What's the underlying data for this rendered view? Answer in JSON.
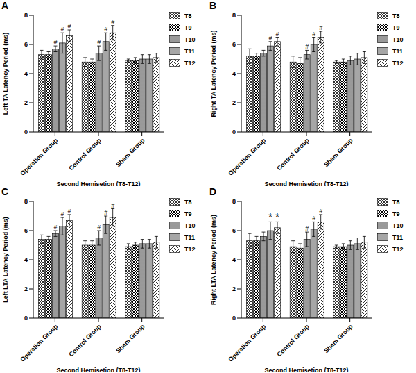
{
  "chart_data": [
    {
      "type": "bar",
      "title": "A",
      "xlabel": "Second Hemisetion (T8-T12)",
      "ylabel": "Left TA Latency Period (ms)",
      "categories": [
        "Operation Group",
        "Control Group",
        "Sham Group"
      ],
      "ylim": [
        0,
        8
      ],
      "yticks": [
        0,
        2,
        4,
        6,
        8
      ],
      "grid": false,
      "legend": "right",
      "series": [
        {
          "name": "T8",
          "color": "#000000",
          "values": [
            5.3,
            4.8,
            4.9
          ],
          "errors": [
            0.3,
            0.3,
            0.1
          ],
          "annotations": [
            null,
            null,
            null
          ]
        },
        {
          "name": "T9",
          "color": "#000000",
          "values": [
            5.3,
            4.8,
            4.9
          ],
          "errors": [
            0.2,
            0.2,
            0.2
          ],
          "annotations": [
            null,
            null,
            null
          ]
        },
        {
          "name": "T10",
          "color": "#000000",
          "values": [
            5.7,
            5.4,
            5.0
          ],
          "errors": [
            0.2,
            0.5,
            0.3
          ],
          "annotations": [
            "#",
            "#",
            null
          ]
        },
        {
          "name": "T11",
          "color": "#000000",
          "values": [
            6.1,
            6.2,
            5.0
          ],
          "errors": [
            0.7,
            0.6,
            0.3
          ],
          "annotations": [
            "#",
            "#",
            null
          ]
        },
        {
          "name": "T12",
          "color": "#000000",
          "values": [
            6.6,
            6.8,
            5.1
          ],
          "errors": [
            0.4,
            0.5,
            0.3
          ],
          "annotations": [
            "#",
            "#",
            null
          ]
        }
      ]
    },
    {
      "type": "bar",
      "title": "B",
      "xlabel": "Second Hemisetion (T8-T12)",
      "ylabel": "Right TA Latency Period (ms)",
      "categories": [
        "Operation Group",
        "Control Group",
        "Sham Group"
      ],
      "ylim": [
        0,
        8
      ],
      "yticks": [
        0,
        2,
        4,
        6,
        8
      ],
      "grid": false,
      "legend": "right",
      "series": [
        {
          "name": "T8",
          "color": "#000000",
          "values": [
            5.2,
            4.8,
            4.8
          ],
          "errors": [
            0.5,
            0.4,
            0.1
          ],
          "annotations": [
            null,
            null,
            null
          ]
        },
        {
          "name": "T9",
          "color": "#000000",
          "values": [
            5.2,
            4.7,
            4.8
          ],
          "errors": [
            0.2,
            0.4,
            0.2
          ],
          "annotations": [
            null,
            null,
            null
          ]
        },
        {
          "name": "T10",
          "color": "#000000",
          "values": [
            5.4,
            5.3,
            4.9
          ],
          "errors": [
            0.2,
            0.3,
            0.3
          ],
          "annotations": [
            null,
            "#",
            null
          ]
        },
        {
          "name": "T11",
          "color": "#000000",
          "values": [
            5.9,
            6.0,
            5.0
          ],
          "errors": [
            0.3,
            0.5,
            0.4
          ],
          "annotations": [
            "#",
            "#",
            null
          ]
        },
        {
          "name": "T12",
          "color": "#000000",
          "values": [
            6.2,
            6.5,
            5.1
          ],
          "errors": [
            0.3,
            0.4,
            0.4
          ],
          "annotations": [
            "#",
            "#",
            null
          ]
        }
      ]
    },
    {
      "type": "bar",
      "title": "C",
      "xlabel": "Second Hemisetion (T8-T12)",
      "ylabel": "Left LTA Latency Period (ms)",
      "categories": [
        "Operation Group",
        "Control Group",
        "Sham Group"
      ],
      "ylim": [
        0,
        8
      ],
      "yticks": [
        0,
        2,
        4,
        6,
        8
      ],
      "grid": false,
      "legend": "right",
      "series": [
        {
          "name": "T8",
          "color": "#000000",
          "values": [
            5.4,
            5.0,
            4.9
          ],
          "errors": [
            0.3,
            0.3,
            0.2
          ],
          "annotations": [
            null,
            null,
            null
          ]
        },
        {
          "name": "T9",
          "color": "#000000",
          "values": [
            5.4,
            5.0,
            5.0
          ],
          "errors": [
            0.2,
            0.3,
            0.2
          ],
          "annotations": [
            null,
            null,
            null
          ]
        },
        {
          "name": "T10",
          "color": "#000000",
          "values": [
            5.8,
            5.5,
            5.1
          ],
          "errors": [
            0.2,
            0.5,
            0.3
          ],
          "annotations": [
            "#",
            "#",
            null
          ]
        },
        {
          "name": "T11",
          "color": "#000000",
          "values": [
            6.3,
            6.4,
            5.1
          ],
          "errors": [
            0.6,
            0.6,
            0.3
          ],
          "annotations": [
            "#",
            "#",
            null
          ]
        },
        {
          "name": "T12",
          "color": "#000000",
          "values": [
            6.7,
            6.9,
            5.2
          ],
          "errors": [
            0.4,
            0.6,
            0.4
          ],
          "annotations": [
            "#",
            "#",
            null
          ]
        }
      ]
    },
    {
      "type": "bar",
      "title": "D",
      "xlabel": "Second Hemisetion (T8-T12)",
      "ylabel": "Right LTA Latency Period (ms)",
      "categories": [
        "Operation Group",
        "Control Group",
        "Sham Group"
      ],
      "ylim": [
        0,
        8
      ],
      "yticks": [
        0,
        2,
        4,
        6,
        8
      ],
      "grid": false,
      "legend": "right",
      "series": [
        {
          "name": "T8",
          "color": "#000000",
          "values": [
            5.3,
            4.9,
            4.9
          ],
          "errors": [
            0.5,
            0.4,
            0.1
          ],
          "annotations": [
            null,
            null,
            null
          ]
        },
        {
          "name": "T9",
          "color": "#000000",
          "values": [
            5.3,
            4.8,
            4.9
          ],
          "errors": [
            0.3,
            0.3,
            0.2
          ],
          "annotations": [
            null,
            null,
            null
          ]
        },
        {
          "name": "T10",
          "color": "#000000",
          "values": [
            5.6,
            5.4,
            5.0
          ],
          "errors": [
            0.3,
            0.5,
            0.3
          ],
          "annotations": [
            null,
            "#",
            null
          ]
        },
        {
          "name": "T11",
          "color": "#000000",
          "values": [
            6.0,
            6.1,
            5.1
          ],
          "errors": [
            0.6,
            0.5,
            0.4
          ],
          "annotations": [
            "*",
            "#",
            null
          ]
        },
        {
          "name": "T12",
          "color": "#000000",
          "values": [
            6.2,
            6.6,
            5.2
          ],
          "errors": [
            0.4,
            0.5,
            0.4
          ],
          "annotations": [
            "*",
            "#",
            null
          ]
        }
      ]
    }
  ]
}
